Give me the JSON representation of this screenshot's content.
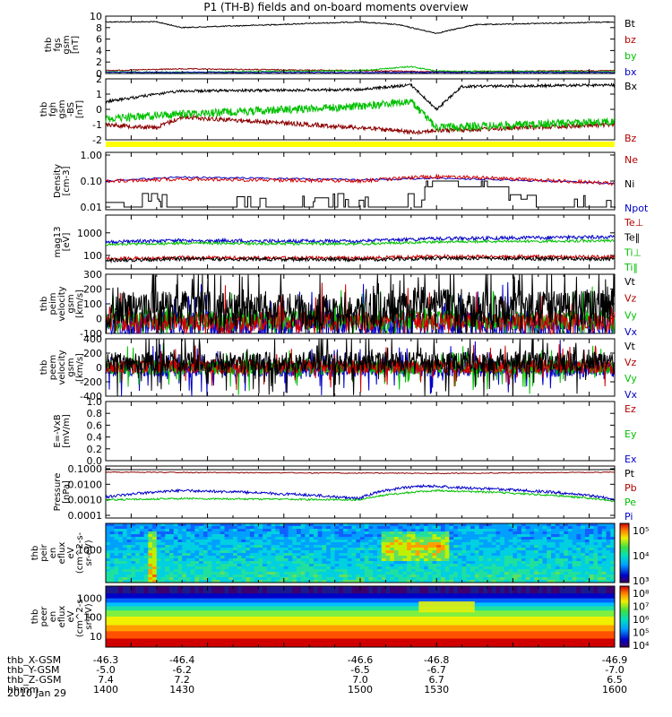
{
  "title": "P1 (TH-B) fields and on-board moments overview",
  "date_label": "2010 Jan 29",
  "colors": {
    "black": "#000000",
    "red": "#b30000",
    "green": "#00c000",
    "blue": "#0000c8",
    "dark_red": "#8b0000",
    "yellow": "#ffff00",
    "mag_red": "#d00000"
  },
  "panels": [
    {
      "id": "fgs",
      "ylabel": [
        "thb",
        "fgs",
        "gsm",
        "[nT]"
      ],
      "ticks": [
        "10",
        "8",
        "6",
        "4",
        "2",
        "0"
      ],
      "legend": [
        {
          "text": "Bt",
          "color": "#000000"
        },
        {
          "text": "bz",
          "color": "#b30000"
        },
        {
          "text": "by",
          "color": "#00c000"
        },
        {
          "text": "bx",
          "color": "#0000c8"
        }
      ]
    },
    {
      "id": "fgh",
      "ylabel": [
        "thb",
        "fgh",
        "gsm",
        "-BS",
        "[nT]"
      ],
      "ticks": [
        "2",
        "1",
        "0",
        "-1",
        "-2"
      ],
      "legend": [
        {
          "text": "Bx",
          "color": "#000000"
        },
        {
          "text": "Bz",
          "color": "#b30000"
        }
      ]
    },
    {
      "id": "density",
      "ylabel": [
        "Density",
        "[cm-3]"
      ],
      "ticks": [
        "1.00",
        "0.10",
        "0.01"
      ],
      "legend": [
        {
          "text": "Ne",
          "color": "#b30000"
        },
        {
          "text": "Ni",
          "color": "#000000"
        },
        {
          "text": "Npot",
          "color": "#0000c8"
        }
      ]
    },
    {
      "id": "temp",
      "ylabel": [
        "mag13",
        "[eV]"
      ],
      "ticks": [
        "1000",
        "100"
      ],
      "legend": [
        {
          "text": "Te⊥",
          "color": "#b30000"
        },
        {
          "text": "Te‖",
          "color": "#000000"
        },
        {
          "text": "Ti⊥",
          "color": "#00c000"
        },
        {
          "text": "Ti‖",
          "color": "#00c000"
        }
      ]
    },
    {
      "id": "peim",
      "ylabel": [
        "thb",
        "peim",
        "velocity",
        "gsm",
        "[km/s]"
      ],
      "ticks": [
        "300",
        "200",
        "100",
        "0",
        "-100"
      ],
      "legend": [
        {
          "text": "Vt",
          "color": "#000000"
        },
        {
          "text": "Vz",
          "color": "#b30000"
        },
        {
          "text": "Vy",
          "color": "#00c000"
        },
        {
          "text": "Vx",
          "color": "#0000c8"
        }
      ]
    },
    {
      "id": "peem",
      "ylabel": [
        "thb",
        "peem",
        "velocity",
        "gsm",
        "[km/s]"
      ],
      "ticks": [
        "400",
        "200",
        "0",
        "-200",
        "-400"
      ],
      "legend": [
        {
          "text": "Vt",
          "color": "#000000"
        },
        {
          "text": "Vz",
          "color": "#b30000"
        },
        {
          "text": "Vy",
          "color": "#00c000"
        },
        {
          "text": "Vx",
          "color": "#0000c8"
        }
      ]
    },
    {
      "id": "efield",
      "ylabel": [
        "E=-VxB",
        "[mV/m]"
      ],
      "ticks": [
        "1.0",
        "0.8",
        "0.6",
        "0.4",
        "0.2",
        "0.0"
      ],
      "legend": [
        {
          "text": "Ez",
          "color": "#b30000"
        },
        {
          "text": "Ey",
          "color": "#00c000"
        },
        {
          "text": "Ex",
          "color": "#0000c8"
        }
      ]
    },
    {
      "id": "pressure",
      "ylabel": [
        "Pressure",
        "[nPa]"
      ],
      "ticks": [
        "0.1000",
        "0.0100",
        "0.0010",
        "0.0001"
      ],
      "legend": [
        {
          "text": "Pt",
          "color": "#000000"
        },
        {
          "text": "Pb",
          "color": "#b30000"
        },
        {
          "text": "Pe",
          "color": "#00c000"
        },
        {
          "text": "Pi",
          "color": "#0000c8"
        }
      ]
    },
    {
      "id": "peir",
      "ylabel": [
        "thb",
        "peir",
        "en",
        "eflux",
        "eV",
        "(cm^2-s-",
        "sr-eV)"
      ],
      "ticks": [
        "1000"
      ],
      "colorbar": [
        "10⁵",
        "10⁴",
        "10³"
      ]
    },
    {
      "id": "peer",
      "ylabel": [
        "thb",
        "peer",
        "en",
        "eflux",
        "eV",
        "(cm^2-s-",
        "sr-eV)"
      ],
      "ticks": [
        "1000",
        "100",
        "10"
      ],
      "colorbar": [
        "10⁸",
        "10⁷",
        "10⁶",
        "10⁵",
        "10⁴"
      ]
    }
  ],
  "footer": {
    "labels": [
      "thb_X-GSM",
      "thb_Y-GSM",
      "thb_Z-GSM",
      "hhmm"
    ],
    "columns": [
      [
        "-46.3",
        "-5.0",
        "7.4",
        "1400"
      ],
      [
        "-46.4",
        "-6.2",
        "7.2",
        "1430"
      ],
      [
        "-46.6",
        "-6.5",
        "7.0",
        "1500"
      ],
      [
        "-46.8",
        "-6.7",
        "6.7",
        "1530"
      ],
      [
        "-46.9",
        "-7.0",
        "6.5",
        "1600"
      ]
    ]
  },
  "chart_data": {
    "type": "line",
    "title": "P1 (TH-B) fields and on-board moments overview",
    "x_axis": {
      "label": "hhmm",
      "range": [
        1400,
        1600
      ],
      "ticks": [
        "1400",
        "1430",
        "1500",
        "1530",
        "1600"
      ]
    },
    "series": [
      {
        "name": "Bt",
        "panel": "fgs",
        "x": [
          1400,
          1420,
          1430,
          1500,
          1515,
          1530,
          1545,
          1600
        ],
        "values": [
          9,
          9,
          8,
          9,
          8.5,
          7,
          8.5,
          9
        ]
      },
      {
        "name": "bz",
        "panel": "fgs",
        "x": [
          1400,
          1430,
          1500,
          1530,
          1600
        ],
        "values": [
          0.5,
          0.8,
          0.5,
          0.3,
          0.5
        ]
      },
      {
        "name": "by",
        "panel": "fgs",
        "x": [
          1400,
          1430,
          1500,
          1520,
          1530,
          1600
        ],
        "values": [
          0.3,
          0.2,
          0.5,
          1.2,
          0.4,
          0.3
        ]
      },
      {
        "name": "Bx",
        "panel": "fgh",
        "x": [
          1400,
          1420,
          1430,
          1500,
          1520,
          1530,
          1540,
          1600
        ],
        "values": [
          0.5,
          1,
          1.2,
          1.3,
          1.6,
          0,
          1.5,
          1.6
        ]
      },
      {
        "name": "Bz",
        "panel": "fgh",
        "x": [
          1400,
          1420,
          1430,
          1500,
          1520,
          1530,
          1600
        ],
        "values": [
          -1,
          -1.2,
          -0.5,
          -1.2,
          -1.5,
          -1.4,
          -1
        ]
      },
      {
        "name": "Ne",
        "panel": "density",
        "x": [
          1400,
          1430,
          1500,
          1530,
          1600
        ],
        "values": [
          0.1,
          0.12,
          0.1,
          0.15,
          0.08
        ]
      },
      {
        "name": "Npot",
        "panel": "density",
        "x": [
          1400,
          1430,
          1500,
          1530,
          1600
        ],
        "values": [
          0.1,
          0.14,
          0.11,
          0.13,
          0.08
        ]
      },
      {
        "name": "Te‖",
        "panel": "temp",
        "x": [
          1400,
          1430,
          1500,
          1530,
          1600
        ],
        "values": [
          400,
          450,
          420,
          550,
          650
        ]
      },
      {
        "name": "Ti⊥",
        "panel": "temp",
        "x": [
          1400,
          1430,
          1500,
          1530,
          1600
        ],
        "values": [
          300,
          350,
          320,
          400,
          450
        ]
      },
      {
        "name": "Te⊥",
        "panel": "temp",
        "x": [
          1400,
          1430,
          1500,
          1530,
          1600
        ],
        "values": [
          70,
          80,
          75,
          90,
          85
        ]
      },
      {
        "name": "Pb",
        "panel": "pressure",
        "x": [
          1400,
          1530,
          1600
        ],
        "values": [
          0.06,
          0.05,
          0.06
        ]
      },
      {
        "name": "Pi",
        "panel": "pressure",
        "x": [
          1400,
          1430,
          1500,
          1525,
          1540,
          1600
        ],
        "values": [
          0.0015,
          0.004,
          0.0012,
          0.008,
          0.006,
          0.001
        ]
      },
      {
        "name": "Pe",
        "panel": "pressure",
        "x": [
          1400,
          1430,
          1500,
          1530,
          1600
        ],
        "values": [
          0.001,
          0.0012,
          0.001,
          0.004,
          0.0008
        ]
      }
    ]
  }
}
